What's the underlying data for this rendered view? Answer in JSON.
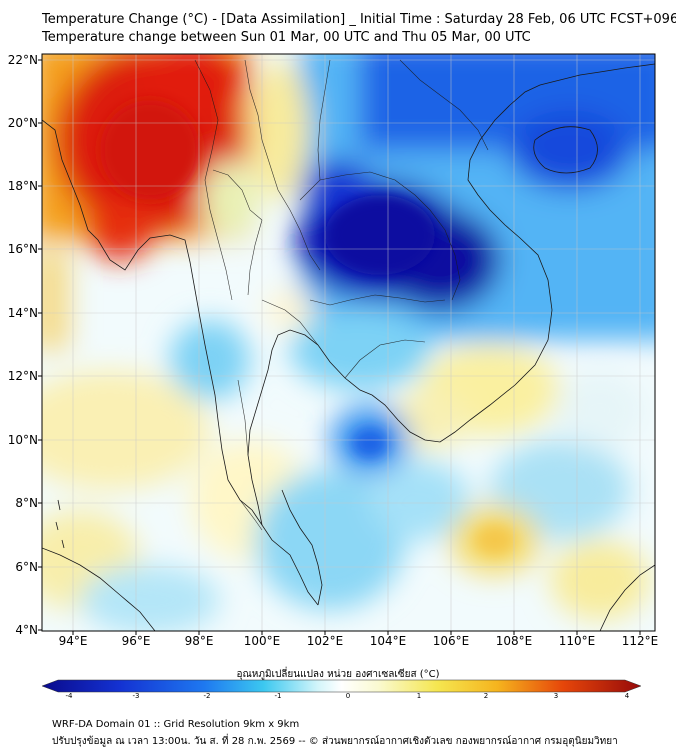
{
  "title": {
    "line1": "Temperature Change (°C) - [Data Assimilation] _ Initial Time : Saturday 28 Feb, 06 UTC FCST+096",
    "line2": "Temperature change between Sun 01 Mar, 00 UTC and Thu 05 Mar, 00 UTC"
  },
  "map": {
    "lat_labels": [
      "22°N",
      "20°N",
      "18°N",
      "16°N",
      "14°N",
      "12°N",
      "10°N",
      "8°N",
      "6°N",
      "4°N"
    ],
    "lon_labels": [
      "94°E",
      "96°E",
      "98°E",
      "100°E",
      "102°E",
      "104°E",
      "106°E",
      "108°E",
      "110°E",
      "112°E"
    ],
    "lat_range": [
      4,
      22.3
    ],
    "lon_range": [
      93,
      112.5
    ],
    "grid": true
  },
  "colorbar": {
    "title": "อุณหภูมิเปลี่ยนแปลง หน่วย องศาเซลเซียส (°C)",
    "ticks": [
      "-4",
      "-3",
      "-2",
      "-1",
      "0",
      "1",
      "2",
      "3",
      "4"
    ],
    "range": [
      -4,
      4
    ],
    "colors": {
      "cold_extreme": "#0a0a8c",
      "cold": "#1e50e6",
      "cool": "#3cb4f0",
      "neutral": "#ffffff",
      "warm": "#f5e650",
      "hot": "#f5a01e",
      "hot_extreme": "#d21e0a"
    }
  },
  "footer": {
    "line1": "WRF-DA Domain 01 :: Grid Resolution 9km x 9km",
    "line2": "ปรับปรุงข้อมูล ณ เวลา 13:00น. วัน ส. ที่ 28 ก.พ. 2569 -- © ส่วนพยากรณ์อากาศเชิงตัวเลข กองพยากรณ์อากาศ กรมอุตุนิยมวิทยา"
  }
}
